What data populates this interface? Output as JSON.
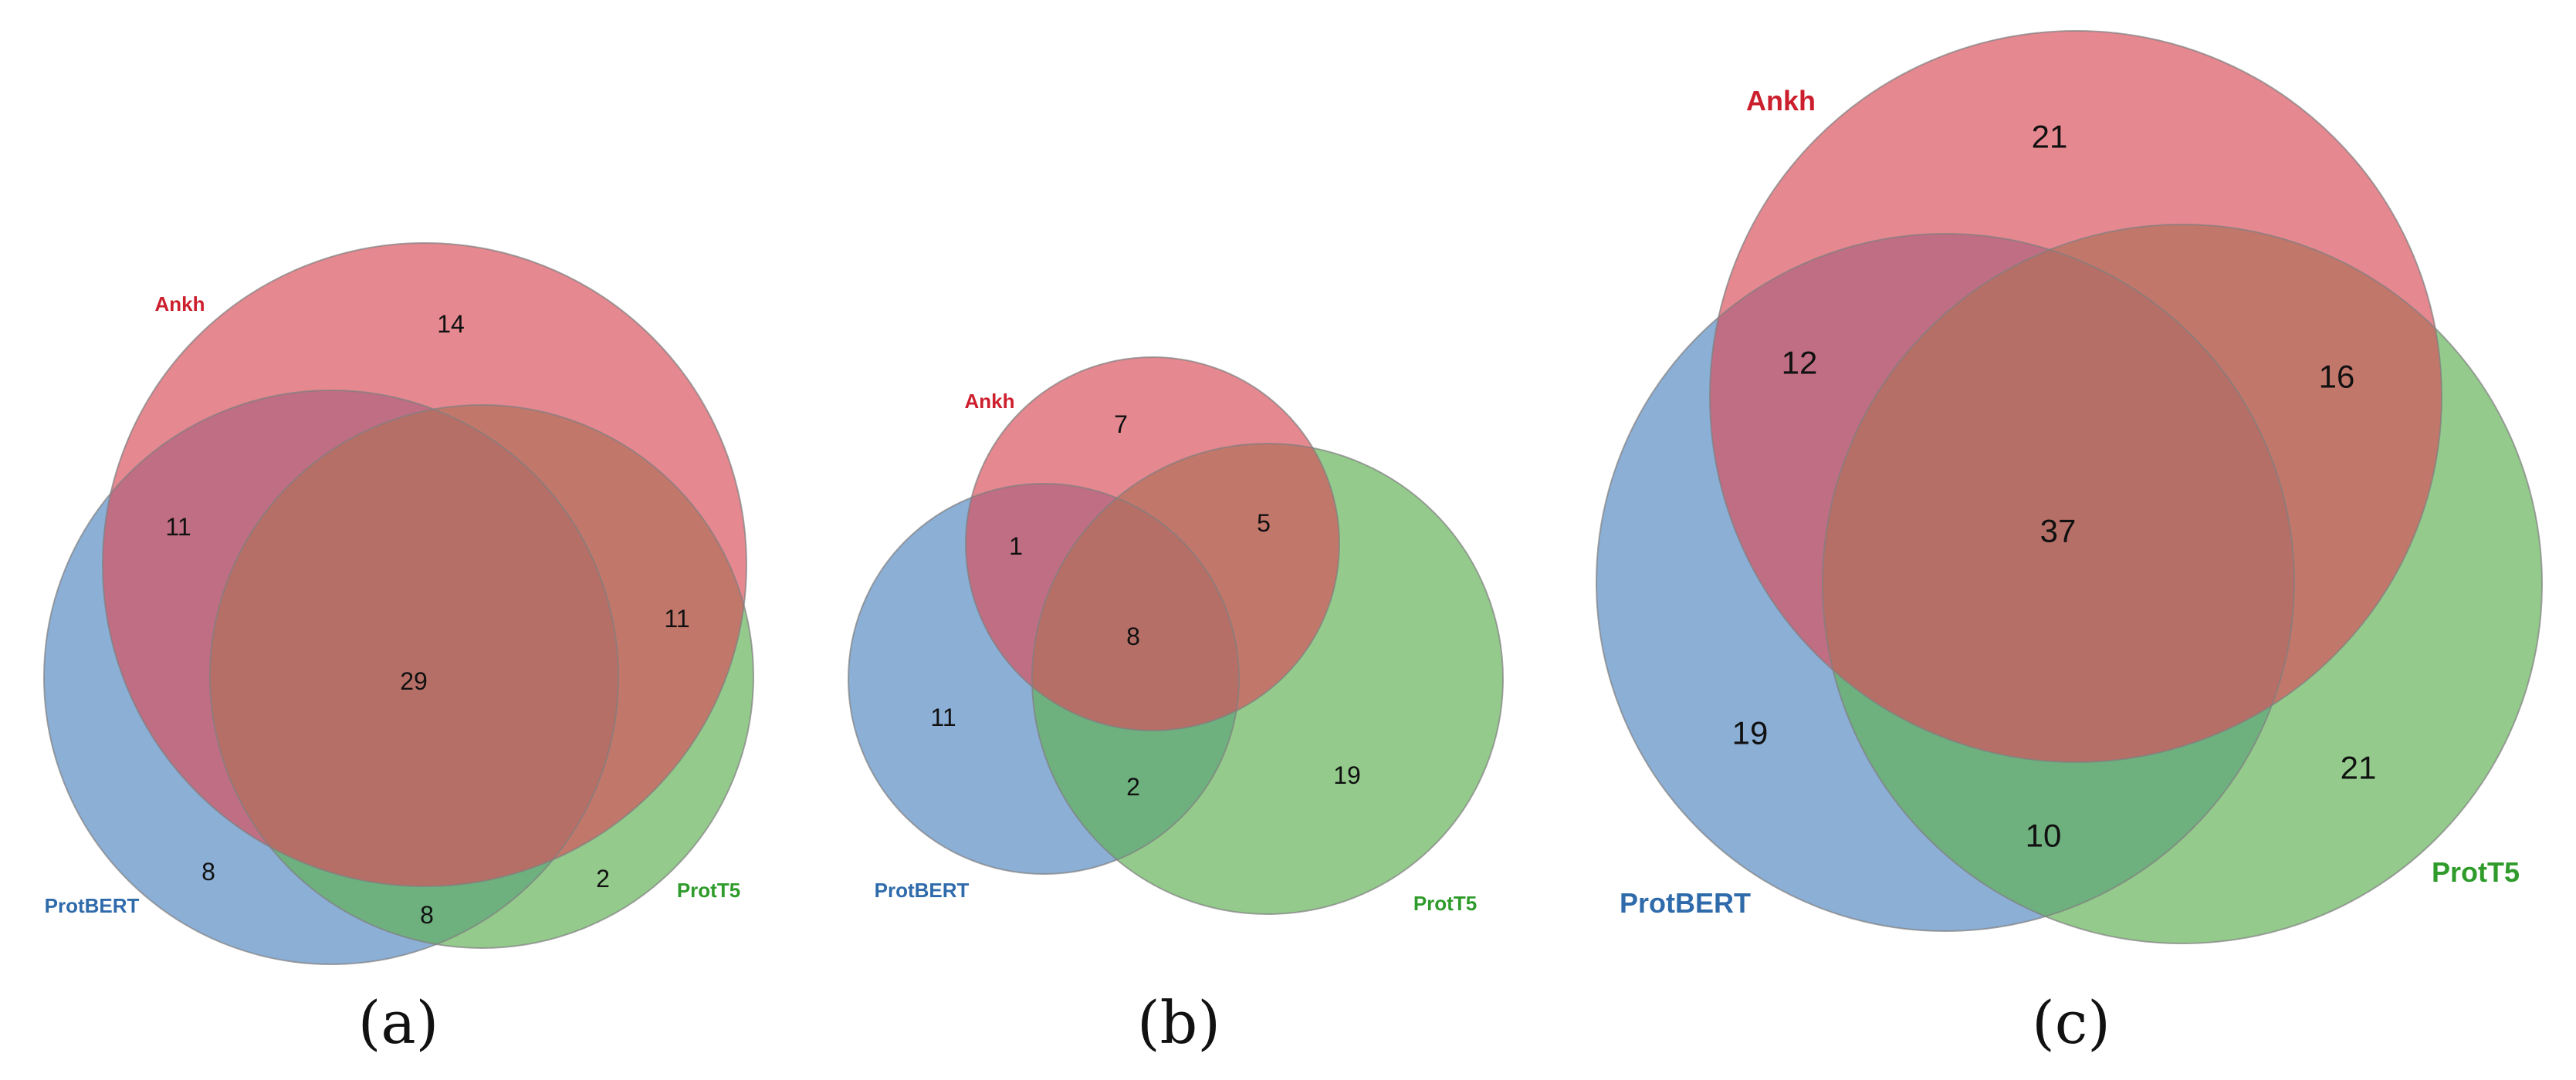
{
  "colors": {
    "ankh": "#d9505c",
    "protbert": "#5b8dc4",
    "prott5": "#5fb153",
    "ankh_label": "#cc1f2d",
    "protbert_label": "#2f6bab",
    "prott5_label": "#2e9b2a",
    "circle_edge": "#7f7f7f"
  },
  "sets": [
    {
      "key": "ankh",
      "label": "Ankh"
    },
    {
      "key": "protbert",
      "label": "ProtBERT"
    },
    {
      "key": "prott5",
      "label": "ProtT5"
    }
  ],
  "panels": [
    {
      "caption": "(a)",
      "regions": {
        "ankh_only": "14",
        "ankh_protbert": "11",
        "ankh_prott5": "11",
        "all_three": "29",
        "protbert_only": "8",
        "protbert_prott5": "8",
        "prott5_only": "2"
      }
    },
    {
      "caption": "(b)",
      "regions": {
        "ankh_only": "7",
        "ankh_protbert": "1",
        "ankh_prott5": "5",
        "all_three": "8",
        "protbert_only": "11",
        "protbert_prott5": "2",
        "prott5_only": "19"
      }
    },
    {
      "caption": "(c)",
      "regions": {
        "ankh_only": "21",
        "ankh_protbert": "12",
        "ankh_prott5": "16",
        "all_three": "37",
        "protbert_only": "19",
        "protbert_prott5": "10",
        "prott5_only": "21"
      }
    }
  ]
}
